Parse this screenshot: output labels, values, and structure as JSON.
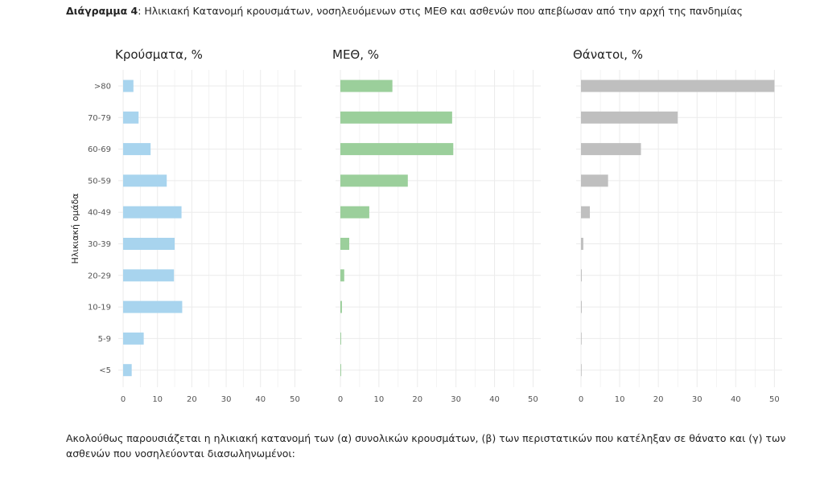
{
  "caption": {
    "lead": "Διάγραμμα 4",
    "text": ": Ηλικιακή Κατανομή κρουσμάτων, νοσηλευόμενων στις ΜΕΘ και ασθενών που απεβίωσαν από την αρχή της πανδημίας"
  },
  "footer": {
    "text": "Ακολούθως παρουσιάζεται η ηλικιακή κατανομή των (α) συνολικών κρουσμάτων, (β) των περιστατικών που κατέληξαν σε θάνατο και (γ) των ασθενών που νοσηλεύονται διασωληνωμένοι:"
  },
  "chart_data": [
    {
      "type": "bar",
      "orientation": "horizontal",
      "title": "Κρούσματα, %",
      "ylabel": "Ηλικιακή ομάδα",
      "categories": [
        ">80",
        "70-79",
        "60-69",
        "50-59",
        "40-49",
        "30-39",
        "20-29",
        "10-19",
        "5-9",
        "<5"
      ],
      "values": [
        3.0,
        4.5,
        8.0,
        12.7,
        17.0,
        15.0,
        14.8,
        17.2,
        6.0,
        2.5
      ],
      "xlim": [
        0,
        52
      ],
      "xticks": [
        0,
        10,
        20,
        30,
        40,
        50
      ],
      "grid": true,
      "color": "#a8d4ee"
    },
    {
      "type": "bar",
      "orientation": "horizontal",
      "title": "ΜΕΘ, %",
      "categories": [
        ">80",
        "70-79",
        "60-69",
        "50-59",
        "40-49",
        "30-39",
        "20-29",
        "10-19",
        "5-9",
        "<5"
      ],
      "values": [
        13.5,
        29.0,
        29.3,
        17.5,
        7.5,
        2.3,
        1.0,
        0.4,
        0.2,
        0.2
      ],
      "xlim": [
        0,
        52
      ],
      "xticks": [
        0,
        10,
        20,
        30,
        40,
        50
      ],
      "grid": true,
      "color": "#9bcf9b"
    },
    {
      "type": "bar",
      "orientation": "horizontal",
      "title": "Θάνατοι, %",
      "categories": [
        ">80",
        "70-79",
        "60-69",
        "50-59",
        "40-49",
        "30-39",
        "20-29",
        "10-19",
        "5-9",
        "<5"
      ],
      "values": [
        50.0,
        25.0,
        15.5,
        7.0,
        2.3,
        0.6,
        0.2,
        0.2,
        0.0,
        0.1
      ],
      "xlim": [
        0,
        52
      ],
      "xticks": [
        0,
        10,
        20,
        30,
        40,
        50
      ],
      "grid": true,
      "color": "#bfbfbf"
    }
  ]
}
